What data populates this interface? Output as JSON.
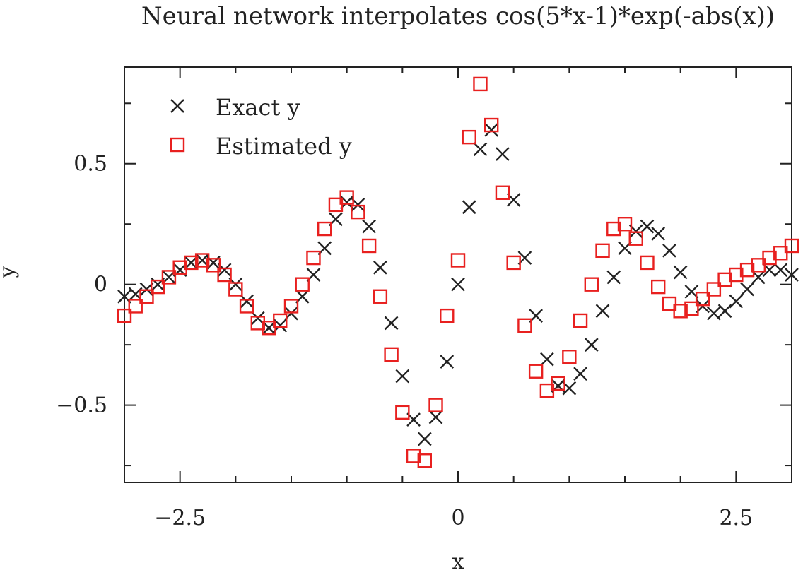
{
  "chart_data": {
    "type": "scatter",
    "title": "Neural network interpolates cos(5*x-1)*exp(-abs(x))",
    "xlabel": "x",
    "ylabel": "y",
    "xlim": [
      -3,
      3
    ],
    "ylim": [
      -0.82,
      0.9
    ],
    "x_ticks": [
      -2.5,
      0,
      2.5
    ],
    "x_tick_labels": [
      "−2.5",
      "0",
      "2.5"
    ],
    "y_ticks": [
      -0.5,
      0,
      0.5
    ],
    "y_tick_labels": [
      "−0.5",
      "0",
      "0.5"
    ],
    "grid": false,
    "legend_position": "top-left",
    "x": [
      -3.0,
      -2.9,
      -2.8,
      -2.7,
      -2.6,
      -2.5,
      -2.4,
      -2.3,
      -2.2,
      -2.1,
      -2.0,
      -1.9,
      -1.8,
      -1.7,
      -1.6,
      -1.5,
      -1.4,
      -1.3,
      -1.2,
      -1.1,
      -1.0,
      -0.9,
      -0.8,
      -0.7,
      -0.6,
      -0.5,
      -0.4,
      -0.3,
      -0.2,
      -0.1,
      0.0,
      0.1,
      0.2,
      0.3,
      0.4,
      0.5,
      0.6,
      0.7,
      0.8,
      0.9,
      1.0,
      1.1,
      1.2,
      1.3,
      1.4,
      1.5,
      1.6,
      1.7,
      1.8,
      1.9,
      2.0,
      2.1,
      2.2,
      2.3,
      2.4,
      2.5,
      2.6,
      2.7,
      2.8,
      2.9,
      3.0
    ],
    "series": [
      {
        "name": "Exact y",
        "marker": "x",
        "color": "#222222",
        "values": [
          -0.05,
          -0.04,
          -0.02,
          0.0,
          0.03,
          0.06,
          0.09,
          0.1,
          0.09,
          0.06,
          0.0,
          -0.07,
          -0.14,
          -0.18,
          -0.17,
          -0.12,
          -0.05,
          0.04,
          0.15,
          0.27,
          0.34,
          0.33,
          0.24,
          0.07,
          -0.16,
          -0.38,
          -0.56,
          -0.64,
          -0.55,
          -0.32,
          0.0,
          0.32,
          0.56,
          0.64,
          0.54,
          0.35,
          0.11,
          -0.13,
          -0.31,
          -0.42,
          -0.43,
          -0.37,
          -0.25,
          -0.11,
          0.03,
          0.15,
          0.22,
          0.24,
          0.21,
          0.14,
          0.05,
          -0.03,
          -0.09,
          -0.12,
          -0.11,
          -0.07,
          -0.02,
          0.03,
          0.06,
          0.06,
          0.04
        ]
      },
      {
        "name": "Estimated y",
        "marker": "square",
        "color": "#e8201f",
        "values": [
          -0.13,
          -0.09,
          -0.05,
          -0.01,
          0.03,
          0.07,
          0.09,
          0.1,
          0.08,
          0.04,
          -0.02,
          -0.09,
          -0.16,
          -0.18,
          -0.15,
          -0.09,
          0.0,
          0.11,
          0.23,
          0.33,
          0.36,
          0.3,
          0.16,
          -0.05,
          -0.29,
          -0.53,
          -0.71,
          -0.73,
          -0.5,
          -0.13,
          0.1,
          0.61,
          0.83,
          0.66,
          0.38,
          0.09,
          -0.17,
          -0.36,
          -0.44,
          -0.41,
          -0.3,
          -0.15,
          0.0,
          0.14,
          0.23,
          0.25,
          0.19,
          0.09,
          -0.01,
          -0.08,
          -0.11,
          -0.1,
          -0.06,
          -0.02,
          0.02,
          0.04,
          0.06,
          0.08,
          0.11,
          0.13,
          0.16
        ]
      }
    ]
  }
}
